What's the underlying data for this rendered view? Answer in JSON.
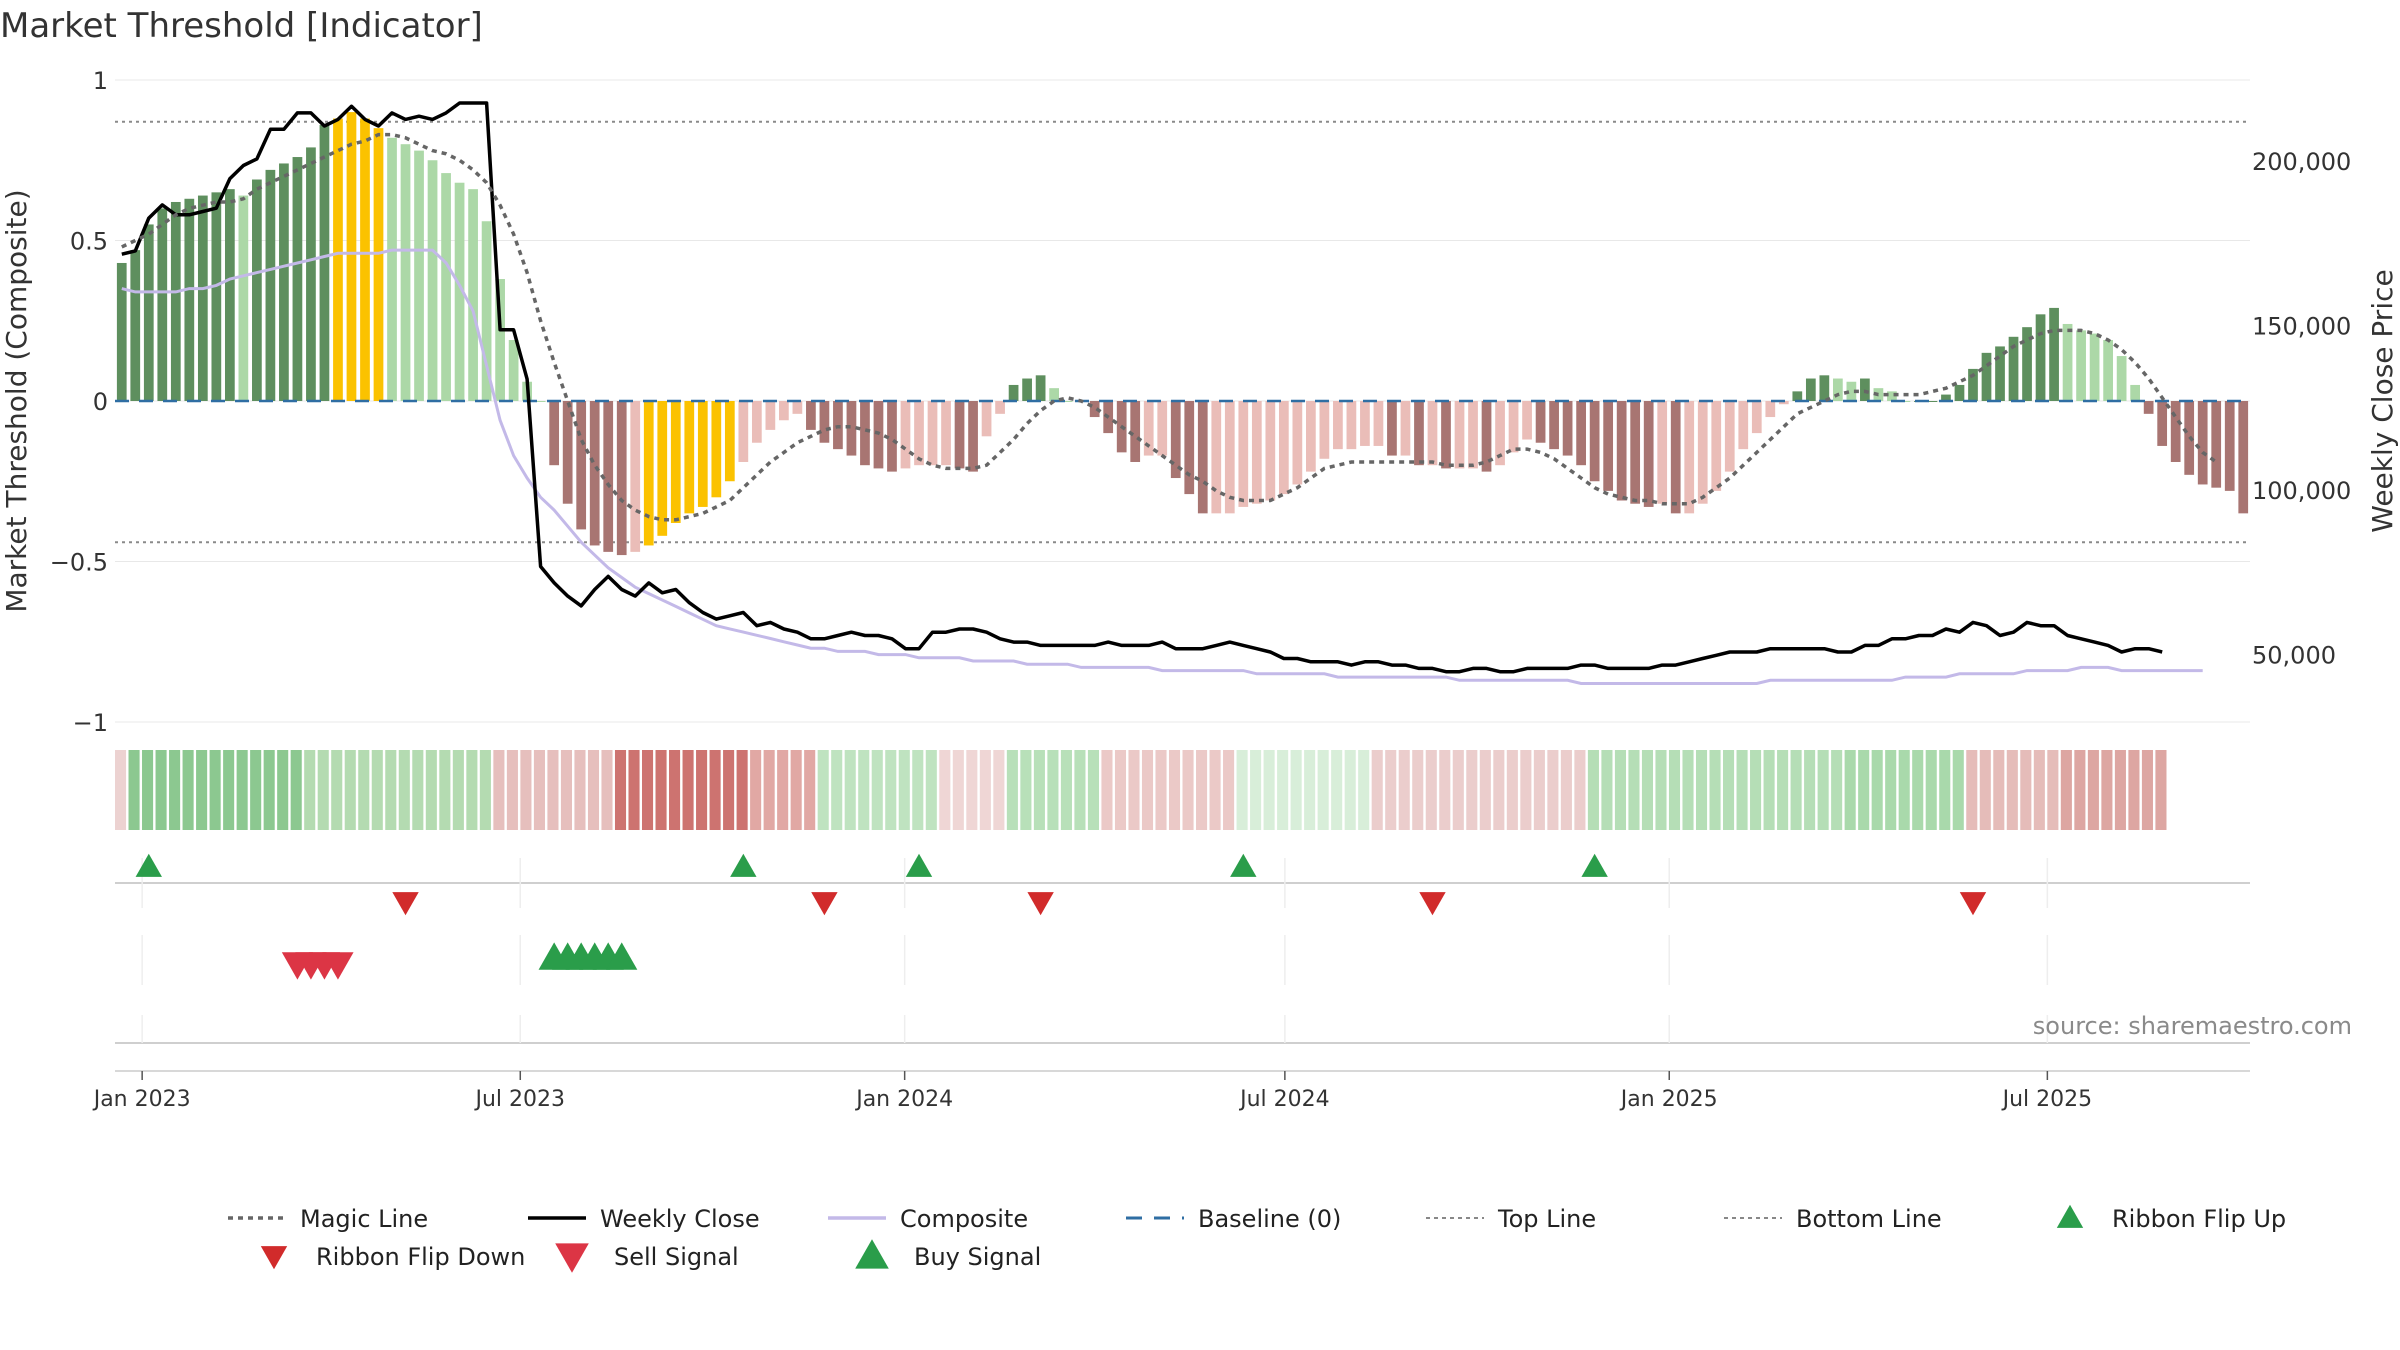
{
  "chart_data": {
    "type": "bar",
    "title": "Market Threshold [Indicator]",
    "ylabel": "Market Threshold (Composite)",
    "y2label": "Weekly Close Price",
    "ylim": [
      -1,
      1
    ],
    "y2lim": [
      30000,
      225000
    ],
    "yticks": [
      "1",
      "0.5",
      "0",
      "−0.5",
      "−1"
    ],
    "y2ticks": [
      "200,000",
      "150,000",
      "100,000",
      "50,000"
    ],
    "y2tick_values": [
      200000,
      150000,
      100000,
      50000
    ],
    "xticks": [
      "Jan 2023",
      "Jul 2023",
      "Jan 2024",
      "Jul 2024",
      "Jan 2025",
      "Jul 2025"
    ],
    "x_start": "2022-12-19",
    "x_end": "2025-10-06",
    "top_line": 0.87,
    "bottom_line": -0.44,
    "source": "source: sharemaestro.com",
    "colors": {
      "dark_green": "#5e8f5e",
      "light_green": "#acd8a7",
      "dark_red": "#a87572",
      "light_red": "#eabdb8",
      "gold": "#fbc200",
      "close": "#000000",
      "composite": "#c3b9e8",
      "magic": "#666666",
      "baseline": "#2f6ea3",
      "flip_up": "#2a9d4a",
      "flip_down": "#d12b2b",
      "sell": "#dc3545",
      "buy": "#2a9d4a"
    },
    "histogram": {
      "description": "weekly oscillator bars",
      "values": [
        0.43,
        0.47,
        0.55,
        0.6,
        0.62,
        0.63,
        0.64,
        0.65,
        0.66,
        0.64,
        0.69,
        0.72,
        0.74,
        0.76,
        0.79,
        0.86,
        0.88,
        0.9,
        0.88,
        0.85,
        0.82,
        0.8,
        0.78,
        0.75,
        0.71,
        0.68,
        0.66,
        0.56,
        0.38,
        0.19,
        0.06,
        0.0,
        -0.2,
        -0.32,
        -0.4,
        -0.45,
        -0.47,
        -0.48,
        -0.47,
        -0.45,
        -0.42,
        -0.38,
        -0.35,
        -0.33,
        -0.3,
        -0.25,
        -0.19,
        -0.13,
        -0.09,
        -0.06,
        -0.04,
        -0.09,
        -0.13,
        -0.15,
        -0.17,
        -0.2,
        -0.21,
        -0.22,
        -0.21,
        -0.2,
        -0.2,
        -0.2,
        -0.21,
        -0.22,
        -0.11,
        -0.04,
        0.05,
        0.07,
        0.08,
        0.04,
        0.0,
        0.0,
        -0.05,
        -0.1,
        -0.16,
        -0.19,
        -0.17,
        -0.17,
        -0.24,
        -0.29,
        -0.35,
        -0.35,
        -0.35,
        -0.33,
        -0.32,
        -0.31,
        -0.29,
        -0.26,
        -0.22,
        -0.18,
        -0.15,
        -0.15,
        -0.14,
        -0.14,
        -0.17,
        -0.17,
        -0.2,
        -0.2,
        -0.21,
        -0.21,
        -0.21,
        -0.22,
        -0.2,
        -0.16,
        -0.12,
        -0.13,
        -0.15,
        -0.17,
        -0.2,
        -0.25,
        -0.28,
        -0.31,
        -0.32,
        -0.33,
        -0.32,
        -0.35,
        -0.35,
        -0.32,
        -0.28,
        -0.22,
        -0.15,
        -0.1,
        -0.05,
        -0.01,
        0.03,
        0.07,
        0.08,
        0.07,
        0.06,
        0.07,
        0.04,
        0.03,
        0.0,
        0.0,
        0.0,
        0.02,
        0.05,
        0.1,
        0.15,
        0.17,
        0.2,
        0.23,
        0.27,
        0.29,
        0.24,
        0.22,
        0.21,
        0.19,
        0.14,
        0.05,
        -0.04,
        -0.14,
        -0.19,
        -0.23,
        -0.26,
        -0.27,
        -0.28,
        -0.35
      ],
      "gold_ranges": [
        [
          16,
          19
        ],
        [
          39,
          45
        ]
      ]
    },
    "series": [
      {
        "name": "Magic Line",
        "axis": "left",
        "values": [
          0.48,
          0.5,
          0.52,
          0.55,
          0.58,
          0.6,
          0.61,
          0.62,
          0.62,
          0.63,
          0.66,
          0.68,
          0.7,
          0.72,
          0.74,
          0.76,
          0.78,
          0.8,
          0.81,
          0.83,
          0.83,
          0.82,
          0.8,
          0.78,
          0.77,
          0.75,
          0.72,
          0.68,
          0.61,
          0.52,
          0.4,
          0.25,
          0.12,
          0.0,
          -0.12,
          -0.2,
          -0.26,
          -0.31,
          -0.34,
          -0.36,
          -0.37,
          -0.37,
          -0.36,
          -0.35,
          -0.33,
          -0.31,
          -0.27,
          -0.23,
          -0.19,
          -0.16,
          -0.13,
          -0.11,
          -0.09,
          -0.08,
          -0.08,
          -0.09,
          -0.1,
          -0.12,
          -0.15,
          -0.18,
          -0.2,
          -0.21,
          -0.21,
          -0.21,
          -0.2,
          -0.16,
          -0.12,
          -0.07,
          -0.03,
          0.0,
          0.01,
          0.0,
          -0.02,
          -0.05,
          -0.08,
          -0.11,
          -0.14,
          -0.17,
          -0.2,
          -0.23,
          -0.25,
          -0.28,
          -0.3,
          -0.31,
          -0.31,
          -0.31,
          -0.29,
          -0.27,
          -0.24,
          -0.21,
          -0.2,
          -0.19,
          -0.19,
          -0.19,
          -0.19,
          -0.19,
          -0.19,
          -0.19,
          -0.2,
          -0.2,
          -0.2,
          -0.19,
          -0.17,
          -0.15,
          -0.15,
          -0.16,
          -0.18,
          -0.21,
          -0.24,
          -0.27,
          -0.29,
          -0.3,
          -0.31,
          -0.31,
          -0.32,
          -0.32,
          -0.32,
          -0.3,
          -0.27,
          -0.24,
          -0.2,
          -0.16,
          -0.12,
          -0.08,
          -0.04,
          -0.02,
          0.0,
          0.02,
          0.03,
          0.03,
          0.02,
          0.02,
          0.02,
          0.02,
          0.03,
          0.04,
          0.06,
          0.08,
          0.11,
          0.14,
          0.17,
          0.19,
          0.21,
          0.22,
          0.22,
          0.22,
          0.21,
          0.19,
          0.16,
          0.12,
          0.07,
          0.01,
          -0.05,
          -0.11,
          -0.16,
          -0.19
        ]
      },
      {
        "name": "Weekly Close",
        "axis": "right",
        "values": [
          172000,
          173000,
          183000,
          187000,
          184000,
          184000,
          185000,
          186000,
          195000,
          199000,
          201000,
          210000,
          210000,
          215000,
          215000,
          211000,
          213000,
          217000,
          213000,
          211000,
          215000,
          213000,
          214000,
          213000,
          215000,
          218000,
          218000,
          218000,
          149000,
          149000,
          134000,
          77000,
          72000,
          68000,
          65000,
          70000,
          74000,
          70000,
          68000,
          72000,
          69000,
          70000,
          66000,
          63000,
          61000,
          62000,
          63000,
          59000,
          60000,
          58000,
          57000,
          55000,
          55000,
          56000,
          57000,
          56000,
          56000,
          55000,
          52000,
          52000,
          57000,
          57000,
          58000,
          58000,
          57000,
          55000,
          54000,
          54000,
          53000,
          53000,
          53000,
          53000,
          53000,
          54000,
          53000,
          53000,
          53000,
          54000,
          52000,
          52000,
          52000,
          53000,
          54000,
          53000,
          52000,
          51000,
          49000,
          49000,
          48000,
          48000,
          48000,
          47000,
          48000,
          48000,
          47000,
          47000,
          46000,
          46000,
          45000,
          45000,
          46000,
          46000,
          45000,
          45000,
          46000,
          46000,
          46000,
          46000,
          47000,
          47000,
          46000,
          46000,
          46000,
          46000,
          47000,
          47000,
          48000,
          49000,
          50000,
          51000,
          51000,
          51000,
          52000,
          52000,
          52000,
          52000,
          52000,
          51000,
          51000,
          53000,
          53000,
          55000,
          55000,
          56000,
          56000,
          58000,
          57000,
          60000,
          59000,
          56000,
          57000,
          60000,
          59000,
          59000,
          56000,
          55000,
          54000,
          53000,
          51000,
          52000,
          52000,
          51000
        ]
      },
      {
        "name": "Composite",
        "axis": "left",
        "values": [
          0.35,
          0.34,
          0.34,
          0.34,
          0.34,
          0.35,
          0.35,
          0.36,
          0.38,
          0.39,
          0.4,
          0.41,
          0.42,
          0.43,
          0.44,
          0.45,
          0.46,
          0.46,
          0.46,
          0.46,
          0.47,
          0.47,
          0.47,
          0.47,
          0.43,
          0.36,
          0.28,
          0.11,
          -0.06,
          -0.17,
          -0.24,
          -0.3,
          -0.34,
          -0.39,
          -0.44,
          -0.48,
          -0.52,
          -0.55,
          -0.58,
          -0.6,
          -0.62,
          -0.64,
          -0.66,
          -0.68,
          -0.7,
          -0.71,
          -0.72,
          -0.73,
          -0.74,
          -0.75,
          -0.76,
          -0.77,
          -0.77,
          -0.78,
          -0.78,
          -0.78,
          -0.79,
          -0.79,
          -0.79,
          -0.8,
          -0.8,
          -0.8,
          -0.8,
          -0.81,
          -0.81,
          -0.81,
          -0.81,
          -0.82,
          -0.82,
          -0.82,
          -0.82,
          -0.83,
          -0.83,
          -0.83,
          -0.83,
          -0.83,
          -0.83,
          -0.84,
          -0.84,
          -0.84,
          -0.84,
          -0.84,
          -0.84,
          -0.84,
          -0.85,
          -0.85,
          -0.85,
          -0.85,
          -0.85,
          -0.85,
          -0.86,
          -0.86,
          -0.86,
          -0.86,
          -0.86,
          -0.86,
          -0.86,
          -0.86,
          -0.86,
          -0.87,
          -0.87,
          -0.87,
          -0.87,
          -0.87,
          -0.87,
          -0.87,
          -0.87,
          -0.87,
          -0.88,
          -0.88,
          -0.88,
          -0.88,
          -0.88,
          -0.88,
          -0.88,
          -0.88,
          -0.88,
          -0.88,
          -0.88,
          -0.88,
          -0.88,
          -0.88,
          -0.87,
          -0.87,
          -0.87,
          -0.87,
          -0.87,
          -0.87,
          -0.87,
          -0.87,
          -0.87,
          -0.87,
          -0.86,
          -0.86,
          -0.86,
          -0.86,
          -0.85,
          -0.85,
          -0.85,
          -0.85,
          -0.85,
          -0.84,
          -0.84,
          -0.84,
          -0.84,
          -0.83,
          -0.83,
          -0.83,
          -0.84,
          -0.84,
          -0.84,
          -0.84,
          -0.84,
          -0.84,
          -0.84
        ]
      }
    ],
    "ribbon": {
      "segments": [
        {
          "from": 0,
          "to": 1,
          "color": "#ecd2d1"
        },
        {
          "from": 1,
          "to": 14,
          "color": "#8cc890"
        },
        {
          "from": 14,
          "to": 28,
          "color": "#b4dbb1"
        },
        {
          "from": 28,
          "to": 37,
          "color": "#e6bfbd"
        },
        {
          "from": 37,
          "to": 47,
          "color": "#cd7370"
        },
        {
          "from": 47,
          "to": 52,
          "color": "#e1a8a4"
        },
        {
          "from": 52,
          "to": 61,
          "color": "#bfe3c0"
        },
        {
          "from": 61,
          "to": 66,
          "color": "#efd6d5"
        },
        {
          "from": 66,
          "to": 73,
          "color": "#b8e0b9"
        },
        {
          "from": 73,
          "to": 83,
          "color": "#ebc9c7"
        },
        {
          "from": 83,
          "to": 93,
          "color": "#d8eed9"
        },
        {
          "from": 93,
          "to": 109,
          "color": "#ebcdcc"
        },
        {
          "from": 109,
          "to": 128,
          "color": "#b5deb6"
        },
        {
          "from": 128,
          "to": 137,
          "color": "#a9d9ab"
        },
        {
          "from": 137,
          "to": 144,
          "color": "#e5bcb9"
        },
        {
          "from": 144,
          "to": 152,
          "color": "#dda6a2"
        }
      ]
    },
    "signals": {
      "flip_up": [
        2,
        46,
        59,
        83,
        109
      ],
      "flip_down": [
        21,
        52,
        68,
        97,
        137
      ],
      "sell": [
        13,
        14,
        15,
        16
      ],
      "buy": [
        32,
        33,
        34,
        35,
        36,
        37
      ]
    },
    "legend": [
      {
        "label": "Magic Line",
        "symbol": "dotted",
        "color": "#666666"
      },
      {
        "label": "Weekly Close",
        "symbol": "line",
        "color": "#000000"
      },
      {
        "label": "Composite",
        "symbol": "line",
        "color": "#c3b9e8"
      },
      {
        "label": "Baseline (0)",
        "symbol": "dashed",
        "color": "#2f6ea3"
      },
      {
        "label": "Top Line",
        "symbol": "dotted-light",
        "color": "#888888"
      },
      {
        "label": "Bottom Line",
        "symbol": "dotted-light",
        "color": "#888888"
      },
      {
        "label": "Ribbon Flip Up",
        "symbol": "tri-up",
        "color": "#2a9d4a"
      },
      {
        "label": "Ribbon Flip Down",
        "symbol": "tri-down",
        "color": "#d12b2b"
      },
      {
        "label": "Sell Signal",
        "symbol": "tri-down-big",
        "color": "#dc3545"
      },
      {
        "label": "Buy Signal",
        "symbol": "tri-up-big",
        "color": "#2a9d4a"
      }
    ]
  }
}
